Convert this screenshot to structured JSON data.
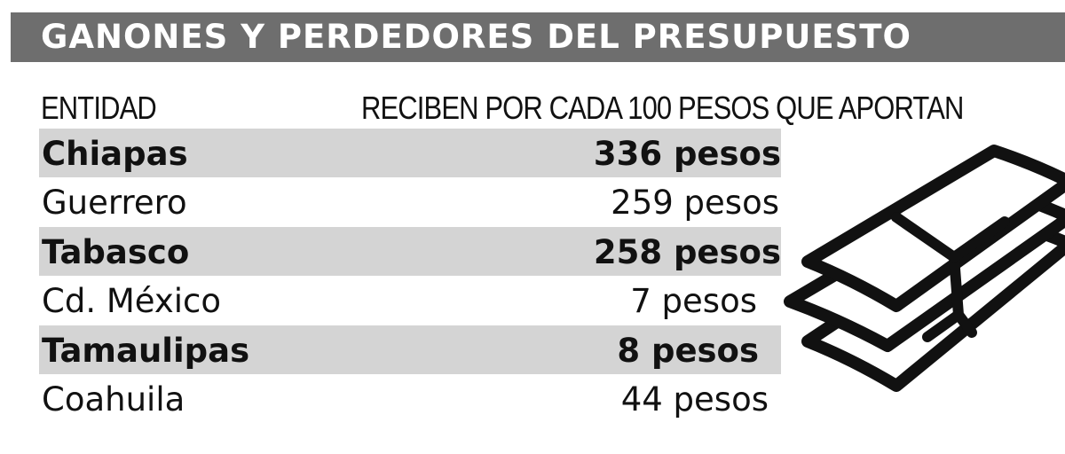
{
  "title": "GANONES Y PERDEDORES DEL PRESUPUESTO",
  "headers": {
    "entidad": "ENTIDAD",
    "reciben": "RECIBEN POR CADA 100 PESOS QUE APORTAN"
  },
  "rows": [
    {
      "state": "Chiapas",
      "value_text": "336 pesos"
    },
    {
      "state": "Guerrero",
      "value_text": "259 pesos"
    },
    {
      "state": "Tabasco",
      "value_text": "258 pesos"
    },
    {
      "state": "Cd. México",
      "value_text": "7 pesos"
    },
    {
      "state": "Tamaulipas",
      "value_text": "8 pesos"
    },
    {
      "state": "Coahuila",
      "value_text": "44 pesos"
    }
  ],
  "colors": {
    "title_bar": "#6e6e6e",
    "row_shade": "#d4d4d4",
    "text": "#111111"
  },
  "icons": [
    "money-stack-icon"
  ],
  "chart_data": {
    "type": "table",
    "title": "GANONES Y PERDEDORES DEL PRESUPUESTO",
    "columns": [
      "ENTIDAD",
      "RECIBEN POR CADA 100 PESOS QUE APORTAN"
    ],
    "categories": [
      "Chiapas",
      "Guerrero",
      "Tabasco",
      "Cd. México",
      "Tamaulipas",
      "Coahuila"
    ],
    "values": [
      336,
      259,
      258,
      7,
      8,
      44
    ],
    "unit": "pesos"
  }
}
